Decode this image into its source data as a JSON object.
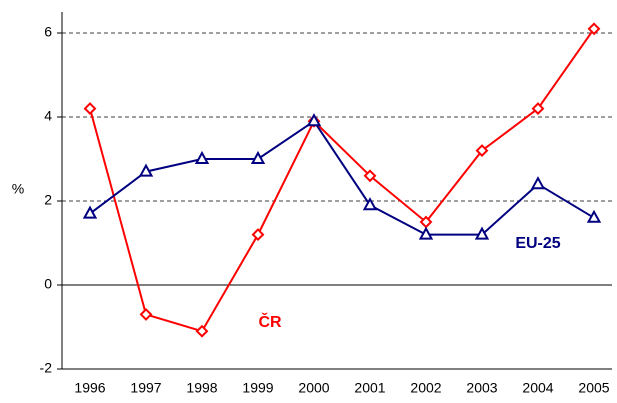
{
  "chart_data": {
    "type": "line",
    "ylabel": "%",
    "categories": [
      "1996",
      "1997",
      "1998",
      "1999",
      "2000",
      "2001",
      "2002",
      "2003",
      "2004",
      "2005"
    ],
    "series": [
      {
        "name": "ČR",
        "color": "#ff0000",
        "marker": "diamond",
        "values": [
          4.2,
          -0.7,
          -1.1,
          1.2,
          3.9,
          2.6,
          1.5,
          3.2,
          4.2,
          6.1
        ]
      },
      {
        "name": "EU-25",
        "color": "#000080",
        "marker": "triangle",
        "values": [
          1.7,
          2.7,
          3.0,
          3.0,
          3.9,
          1.9,
          1.2,
          1.2,
          2.4,
          1.6
        ]
      }
    ],
    "ylim": [
      -2,
      6.5
    ],
    "yticks": [
      -2,
      0,
      2,
      4,
      6
    ],
    "grid": true
  }
}
